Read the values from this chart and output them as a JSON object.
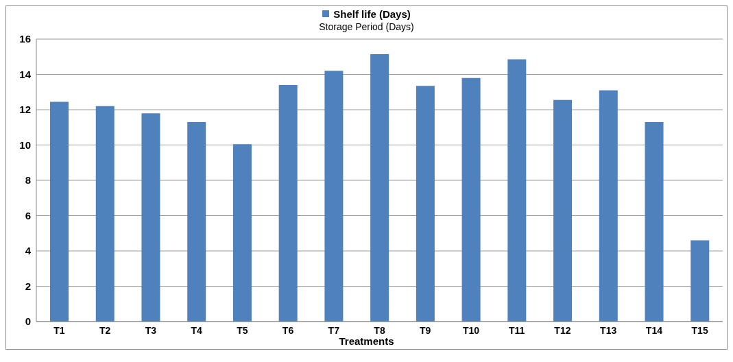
{
  "chart_data": {
    "type": "bar",
    "title": "Storage Period (Days)",
    "xlabel": "Treatments",
    "categories": [
      "T1",
      "T2",
      "T3",
      "T4",
      "T5",
      "T6",
      "T7",
      "T8",
      "T9",
      "T10",
      "T11",
      "T12",
      "T13",
      "T14",
      "T15"
    ],
    "series": [
      {
        "name": "Shelf life (Days)",
        "color": "#4f81bd",
        "values": [
          12.45,
          12.2,
          11.8,
          11.3,
          10.05,
          13.4,
          14.2,
          15.15,
          13.35,
          13.8,
          14.85,
          12.55,
          13.1,
          11.3,
          4.6
        ]
      }
    ],
    "ylim": [
      0,
      16
    ],
    "yticks": [
      0,
      2,
      4,
      6,
      8,
      10,
      12,
      14,
      16
    ],
    "grid": "y",
    "legend": "top"
  }
}
